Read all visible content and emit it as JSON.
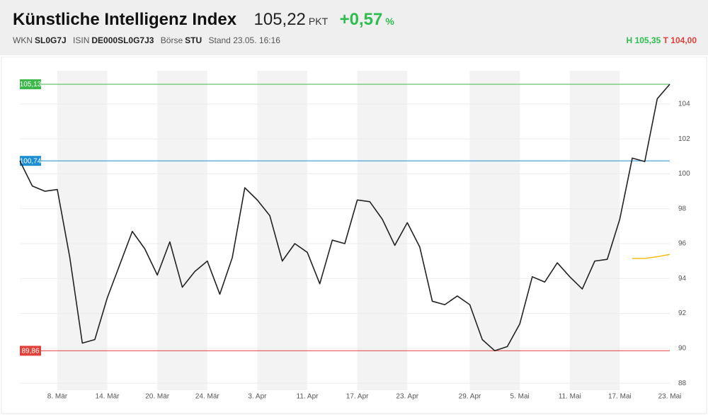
{
  "header": {
    "title": "Künstliche Intelligenz Index",
    "price": "105,22",
    "unit": "PKT",
    "change": "+0,57",
    "change_unit": "%",
    "meta": [
      {
        "label": "WKN",
        "value": "SL0G7J"
      },
      {
        "label": "ISIN",
        "value": "DE000SL0G7J3"
      },
      {
        "label": "Börse",
        "value": "STU"
      }
    ],
    "stand": "Stand 23.05. 16:16",
    "high_label": "H",
    "high": "105,35",
    "low_label": "T",
    "low": "104,00"
  },
  "chart_data": {
    "type": "line",
    "categories": [
      null,
      null,
      null,
      "8. Mär",
      null,
      null,
      null,
      "14. Mär",
      null,
      null,
      null,
      "20. Mär",
      null,
      null,
      null,
      "24. Mär",
      null,
      null,
      null,
      "3. Apr",
      null,
      null,
      null,
      "11. Apr",
      null,
      null,
      null,
      "17. Apr",
      null,
      null,
      null,
      "23. Apr",
      null,
      null,
      null,
      null,
      "29. Apr",
      null,
      null,
      null,
      "5. Mai",
      null,
      null,
      null,
      "11. Mai",
      null,
      null,
      null,
      "17. Mai",
      null,
      null,
      null,
      "23. Mai"
    ],
    "series": [
      {
        "color": "#222222",
        "values": [
          100.74,
          99.3,
          99.0,
          99.1,
          95.2,
          90.3,
          90.5,
          92.9,
          94.8,
          96.7,
          95.7,
          94.2,
          96.1,
          93.5,
          94.4,
          95.0,
          93.1,
          95.2,
          99.2,
          98.5,
          97.6,
          95.0,
          96.0,
          95.5,
          93.7,
          96.2,
          96.0,
          98.5,
          98.4,
          97.4,
          95.9,
          97.2,
          95.8,
          92.7,
          92.5,
          93.0,
          92.5,
          90.5,
          89.86,
          90.1,
          91.4,
          94.1,
          93.8,
          94.9,
          94.1,
          93.4,
          95.0,
          95.1,
          97.4,
          100.9,
          100.7,
          104.3,
          105.13
        ]
      },
      {
        "color": "#f5b800",
        "values": [
          null,
          null,
          null,
          null,
          null,
          null,
          null,
          null,
          null,
          null,
          null,
          null,
          null,
          null,
          null,
          null,
          null,
          null,
          null,
          null,
          null,
          null,
          null,
          null,
          null,
          null,
          null,
          null,
          null,
          null,
          null,
          null,
          null,
          null,
          null,
          null,
          null,
          null,
          null,
          null,
          null,
          null,
          null,
          null,
          null,
          null,
          null,
          null,
          null,
          95.15,
          95.15,
          95.25,
          95.38
        ]
      }
    ],
    "reference_lines": [
      {
        "value": 105.13,
        "label": "105,13",
        "color": "#3cb84a"
      },
      {
        "value": 100.74,
        "label": "100,74",
        "color": "#1b8fd2"
      },
      {
        "value": 89.86,
        "label": "89,86",
        "color": "#e0413a"
      }
    ],
    "ylim": [
      87.6,
      105.9
    ],
    "yticks": [
      88,
      90,
      92,
      94,
      96,
      98,
      100,
      102,
      104
    ],
    "grid": true,
    "shade_weeks": true
  }
}
